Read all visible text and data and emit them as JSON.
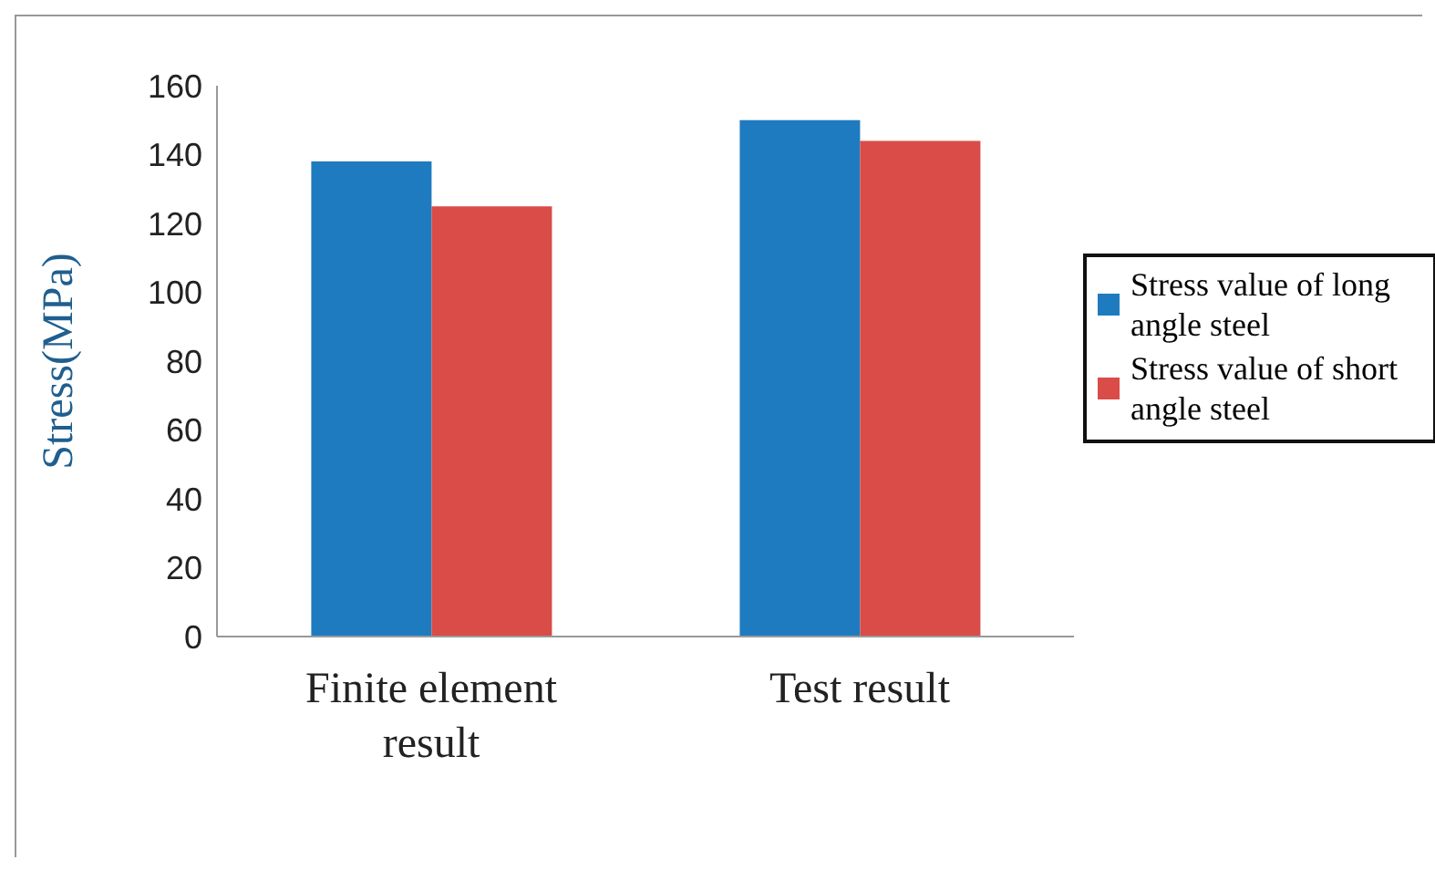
{
  "chart_data": {
    "type": "bar",
    "ylabel": "Stress(MPa)",
    "categories": [
      "Finite element result",
      "Test result"
    ],
    "series": [
      {
        "name": "Stress value of long angle steel",
        "color": "#1f7bbf",
        "values": [
          138,
          150
        ]
      },
      {
        "name": "Stress value of short angle steel",
        "color": "#d94c48",
        "values": [
          125,
          144
        ]
      }
    ],
    "ylim": [
      0,
      160
    ],
    "yticks": [
      0,
      20,
      40,
      60,
      80,
      100,
      120,
      140,
      160
    ],
    "grid": false,
    "legend": "right"
  }
}
